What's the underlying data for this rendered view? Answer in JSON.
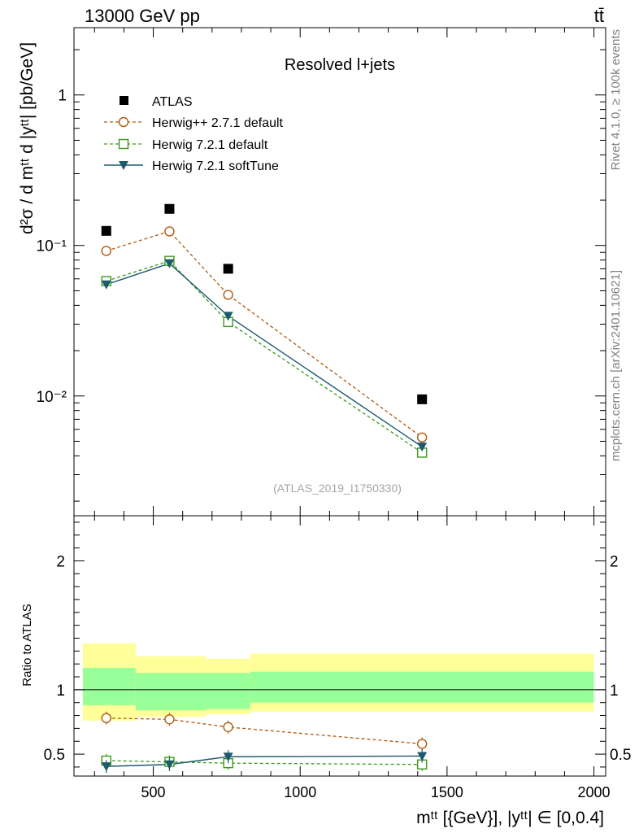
{
  "header": {
    "beam_label": "13000 GeV pp",
    "process_label": "tt̄"
  },
  "side_labels": {
    "rivet": "Rivet 4.1.0, ≥ 100k events",
    "mcplots": "mcplots.cern.ch [arXiv:2401.10621]"
  },
  "analysis_tag": "(ATLAS_2019_I1750330)",
  "colors": {
    "data": "#000000",
    "herwigpp": "#b05a10",
    "herwig721": "#3a9a1a",
    "softtune": "#1d5a6e",
    "band_outer": "#ffff99",
    "band_inner": "#99ff99"
  },
  "chart_data": [
    {
      "type": "line",
      "title": "Resolved l+jets",
      "ylabel": "d²σ / d mᵗᵗ d |yᵗᵗ| [pb/GeV]",
      "yscale": "log",
      "xlim": [
        230,
        2040
      ],
      "ylim": [
        0.0016,
        2.8
      ],
      "yticks": [
        {
          "value": 1,
          "label": "1"
        },
        {
          "value": 0.1,
          "label": "10⁻¹"
        },
        {
          "value": 0.01,
          "label": "10⁻²"
        }
      ],
      "legend_position": "top-left",
      "x": [
        340,
        555,
        755,
        1415
      ],
      "series": [
        {
          "name": "ATLAS",
          "key": "data",
          "style": "data-square",
          "values": [
            0.125,
            0.175,
            0.07,
            0.0095
          ]
        },
        {
          "name": "Herwig++ 2.7.1 default",
          "key": "herwigpp",
          "style": "dashed-circle",
          "values": [
            0.092,
            0.124,
            0.047,
            0.0053
          ]
        },
        {
          "name": "Herwig 7.2.1 default",
          "key": "herwig721",
          "style": "dashed-square",
          "values": [
            0.058,
            0.079,
            0.031,
            0.0042
          ]
        },
        {
          "name": "Herwig 7.2.1 softTune",
          "key": "softtune",
          "style": "solid-triangle",
          "values": [
            0.055,
            0.076,
            0.034,
            0.0046
          ]
        }
      ]
    },
    {
      "type": "line",
      "title": "",
      "xlabel": "mᵗᵗ [{GeV}], |yᵗᵗ| ∈ [0,0.4]",
      "ylabel": "Ratio to ATLAS",
      "xlim": [
        230,
        2040
      ],
      "ylim": [
        0.33,
        2.35
      ],
      "xticks": [
        {
          "value": 500,
          "label": "500"
        },
        {
          "value": 1000,
          "label": "1000"
        },
        {
          "value": 1500,
          "label": "1500"
        },
        {
          "value": 2000,
          "label": "2000"
        }
      ],
      "yticks": [
        {
          "value": 0.5,
          "label": "0.5"
        },
        {
          "value": 1,
          "label": "1"
        },
        {
          "value": 2,
          "label": "2"
        }
      ],
      "x": [
        340,
        555,
        755,
        1415
      ],
      "bands": [
        {
          "x0": 260,
          "x1": 440,
          "inner": [
            0.88,
            1.17
          ],
          "outer": [
            0.76,
            1.36
          ]
        },
        {
          "x0": 440,
          "x1": 680,
          "inner": [
            0.84,
            1.13
          ],
          "outer": [
            0.79,
            1.26
          ]
        },
        {
          "x0": 680,
          "x1": 830,
          "inner": [
            0.85,
            1.13
          ],
          "outer": [
            0.81,
            1.24
          ]
        },
        {
          "x0": 830,
          "x1": 2000,
          "inner": [
            0.9,
            1.14
          ],
          "outer": [
            0.83,
            1.28
          ]
        }
      ],
      "series": [
        {
          "name": "Herwig++ 2.7.1 default",
          "key": "herwigpp",
          "style": "dashed-circle",
          "values": [
            0.78,
            0.77,
            0.71,
            0.58
          ]
        },
        {
          "name": "Herwig 7.2.1 default",
          "key": "herwig721",
          "style": "dashed-square",
          "values": [
            0.45,
            0.44,
            0.43,
            0.42
          ]
        },
        {
          "name": "Herwig 7.2.1 softTune",
          "key": "softtune",
          "style": "solid-triangle",
          "values": [
            0.405,
            0.42,
            0.48,
            0.485
          ]
        }
      ]
    }
  ]
}
